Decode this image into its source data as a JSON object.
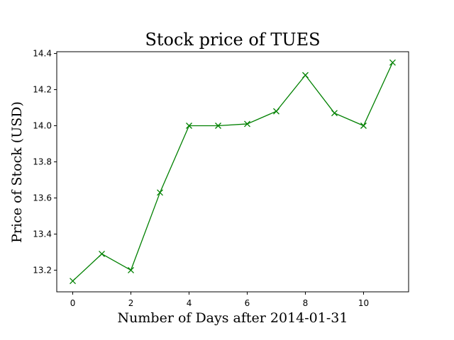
{
  "chart_data": {
    "type": "line",
    "title": "Stock price of TUES",
    "xlabel": "Number of Days after 2014-01-31",
    "ylabel": "Price of Stock (USD)",
    "xlim": [
      -0.55,
      11.55
    ],
    "ylim": [
      13.08,
      14.41
    ],
    "xticks": [
      0,
      2,
      4,
      6,
      8,
      10
    ],
    "yticks": [
      13.2,
      13.4,
      13.6,
      13.8,
      14.0,
      14.2,
      14.4
    ],
    "xtick_labels": [
      "0",
      "2",
      "4",
      "6",
      "8",
      "10"
    ],
    "ytick_labels": [
      "13.2",
      "13.4",
      "13.6",
      "13.8",
      "14.0",
      "14.2",
      "14.4"
    ],
    "grid": false,
    "legend": false,
    "series": [
      {
        "x": [
          0,
          1,
          2,
          3,
          4,
          5,
          6,
          7,
          8,
          9,
          10,
          11
        ],
        "values": [
          13.14,
          13.29,
          13.2,
          13.63,
          14.0,
          14.0,
          14.01,
          14.08,
          14.28,
          14.07,
          14.0,
          14.35
        ],
        "color": "#008000",
        "marker": "x"
      }
    ]
  }
}
